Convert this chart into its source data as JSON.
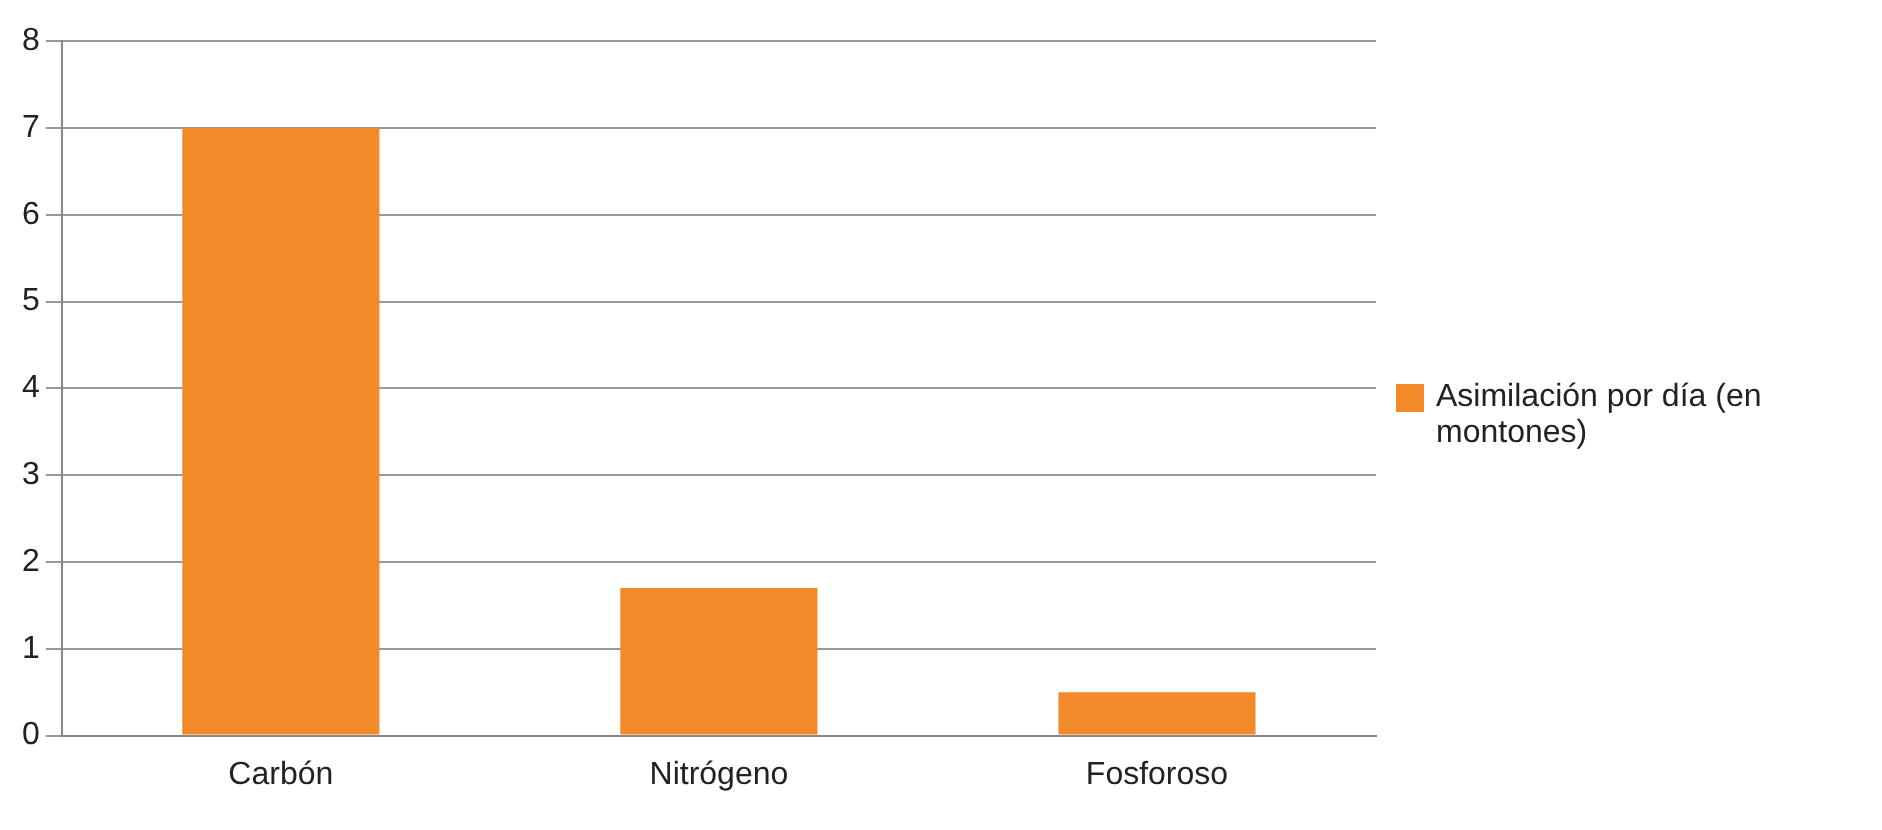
{
  "chart_data": {
    "type": "bar",
    "categories": [
      "Carbón",
      "Nitrógeno",
      "Fosforoso"
    ],
    "series": [
      {
        "name": "Asimilación por día (en montones)",
        "color": "#f28a2a",
        "values": [
          7,
          1.7,
          0.5
        ]
      }
    ],
    "ylim": [
      0,
      8
    ],
    "yticks": [
      0,
      1,
      2,
      3,
      4,
      5,
      6,
      7,
      8
    ],
    "grid": "y",
    "legend": "right"
  }
}
